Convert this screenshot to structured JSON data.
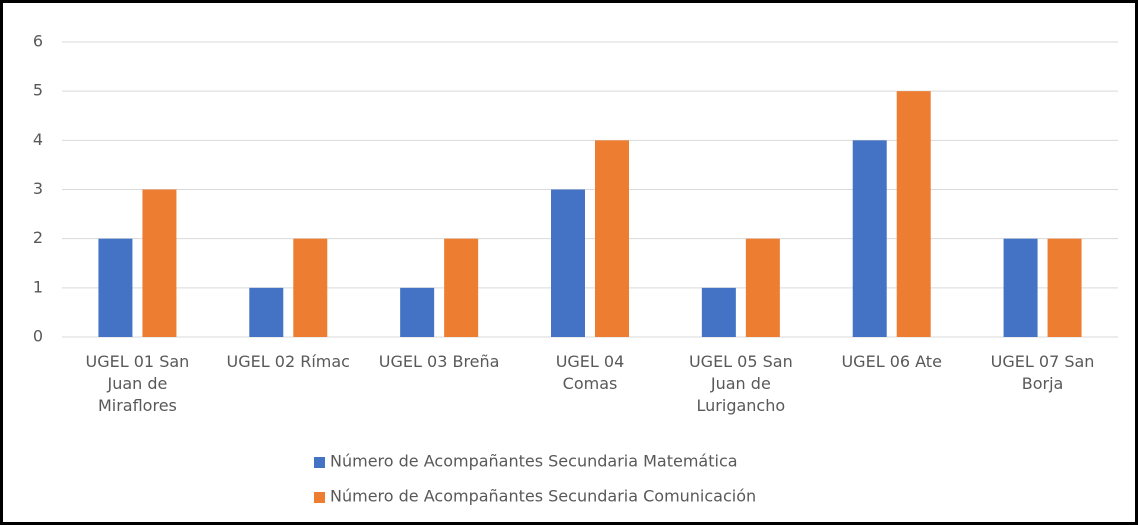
{
  "chart_data": {
    "type": "bar",
    "categories": [
      "UGEL 01 San\nJuan de\nMiraflores",
      "UGEL 02 Rímac",
      "UGEL 03 Breña",
      "UGEL 04\nComas",
      "UGEL 05 San\nJuan de\nLurigancho",
      "UGEL 06 Ate",
      "UGEL 07 San\nBorja"
    ],
    "series": [
      {
        "name": "Número de Acompañantes Secundaria Matemática",
        "color": "#4472c4",
        "values": [
          2,
          1,
          1,
          3,
          1,
          4,
          2
        ]
      },
      {
        "name": "Número de Acompañantes Secundaria Comunicación",
        "color": "#ed7d31",
        "values": [
          3,
          2,
          2,
          4,
          2,
          5,
          2
        ]
      }
    ],
    "ylim": [
      0,
      6
    ],
    "yticks": [
      0,
      1,
      2,
      3,
      4,
      5,
      6
    ],
    "grid": true,
    "legend": "bottom"
  }
}
